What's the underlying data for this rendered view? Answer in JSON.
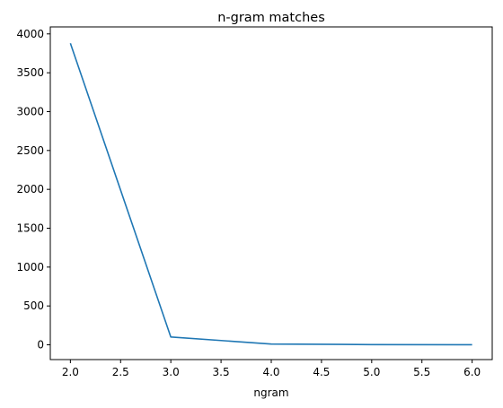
{
  "chart_data": {
    "type": "line",
    "title": "n-gram matches",
    "xlabel": "ngram",
    "ylabel": "",
    "xlim": [
      1.8,
      6.2
    ],
    "ylim": [
      -190,
      4090
    ],
    "xticks": [
      2.0,
      2.5,
      3.0,
      3.5,
      4.0,
      4.5,
      5.0,
      5.5,
      6.0
    ],
    "xtick_labels": [
      "2.0",
      "2.5",
      "3.0",
      "3.5",
      "4.0",
      "4.5",
      "5.0",
      "5.5",
      "6.0"
    ],
    "yticks": [
      0,
      500,
      1000,
      1500,
      2000,
      2500,
      3000,
      3500,
      4000
    ],
    "ytick_labels": [
      "0",
      "500",
      "1000",
      "1500",
      "2000",
      "2500",
      "3000",
      "3500",
      "4000"
    ],
    "grid": false,
    "series": [
      {
        "color": "#1f77b4",
        "x": [
          2,
          3,
          4,
          5,
          6
        ],
        "y": [
          3880,
          100,
          10,
          3,
          1
        ]
      }
    ]
  }
}
